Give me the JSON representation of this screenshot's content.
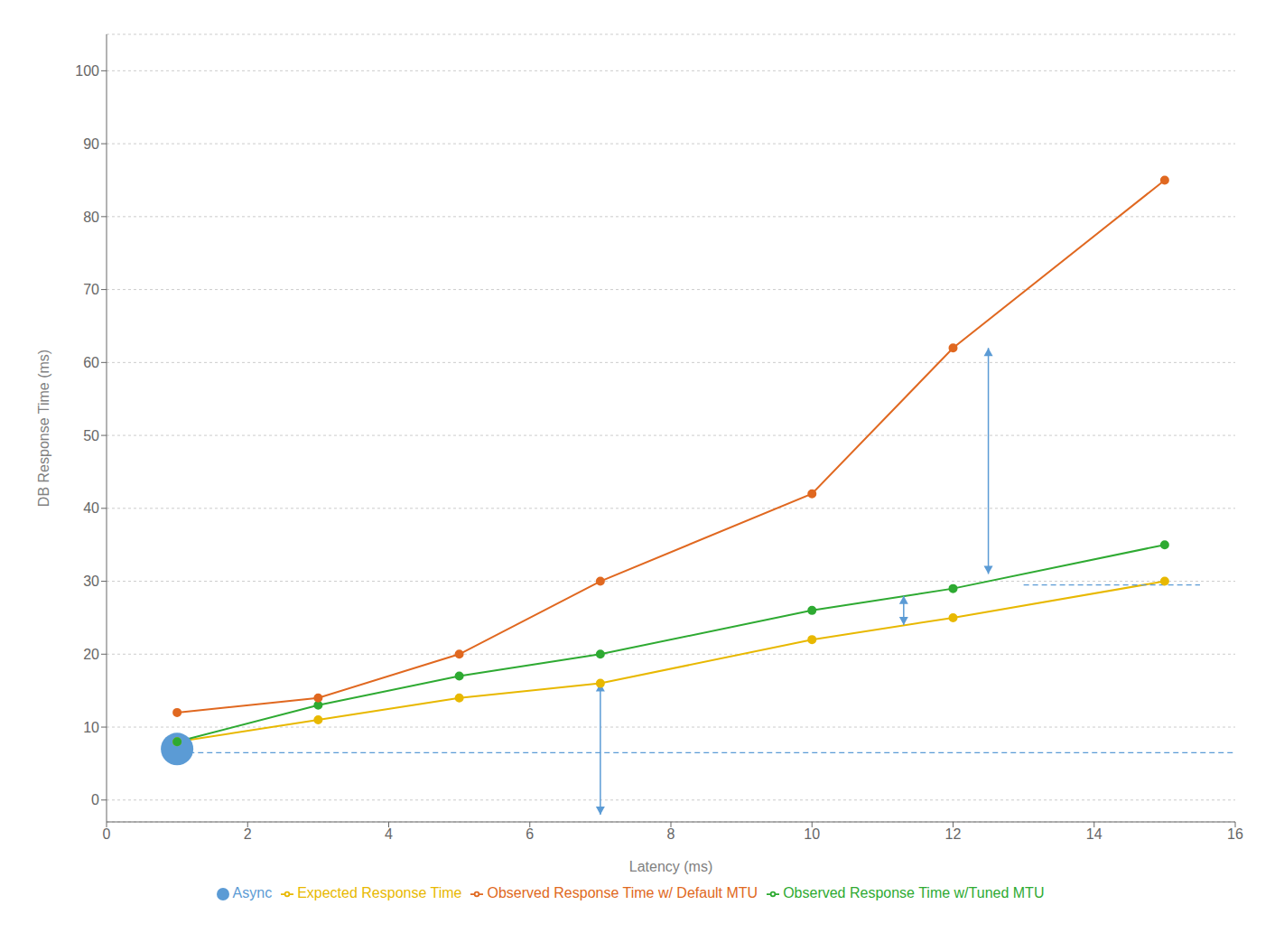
{
  "chart_data": {
    "type": "line",
    "xlabel": "Latency (ms)",
    "ylabel": "DB Response Time (ms)",
    "xlim": [
      0,
      16
    ],
    "ylim": [
      -3,
      105
    ],
    "xticks": [
      0,
      2,
      4,
      6,
      8,
      10,
      12,
      14,
      16
    ],
    "yticks": [
      0,
      10,
      20,
      30,
      40,
      50,
      60,
      70,
      80,
      90,
      100
    ],
    "grid": "y",
    "legend": "bottom",
    "series": [
      {
        "name": "Expected Response Time",
        "type": "line",
        "color": "#e8b800",
        "marker": "o",
        "x": [
          1,
          3,
          5,
          7,
          10,
          12,
          15
        ],
        "values": [
          8,
          11,
          14,
          16,
          22,
          25,
          30
        ]
      },
      {
        "name": "Observed Response Time w/Tuned MTU",
        "type": "line",
        "color": "#2eaa32",
        "marker": "o",
        "x": [
          1,
          3,
          5,
          7,
          10,
          12,
          15
        ],
        "values": [
          8,
          13,
          17,
          20,
          26,
          29,
          35
        ]
      },
      {
        "name": "Observed Response Time w/ Default MTU",
        "type": "line",
        "color": "#e06820",
        "marker": "o",
        "x": [
          1,
          3,
          5,
          7,
          10,
          12,
          15
        ],
        "values": [
          12,
          14,
          20,
          30,
          42,
          62,
          85
        ]
      },
      {
        "name": "Async",
        "type": "scatter",
        "color": "#5b9bd5",
        "marker": "o",
        "x": [
          1
        ],
        "values": [
          7
        ]
      }
    ],
    "reference_lines": [
      {
        "x": [
          1.04,
          16
        ],
        "y": 6.5,
        "color": "#5b9bd5",
        "line_style": "dashed"
      },
      {
        "x": [
          13.0,
          15.5
        ],
        "y": 29.5,
        "color": "#5b9bd5",
        "line_style": "dashed"
      }
    ],
    "arrows": [
      {
        "x": 7,
        "y": [
          -2,
          16
        ],
        "color": "#5b9bd5"
      },
      {
        "x": 12.5,
        "y": [
          31,
          62
        ],
        "color": "#5b9bd5"
      },
      {
        "x": 11.3,
        "y": [
          24,
          28
        ],
        "color": "#5b9bd5"
      }
    ]
  }
}
